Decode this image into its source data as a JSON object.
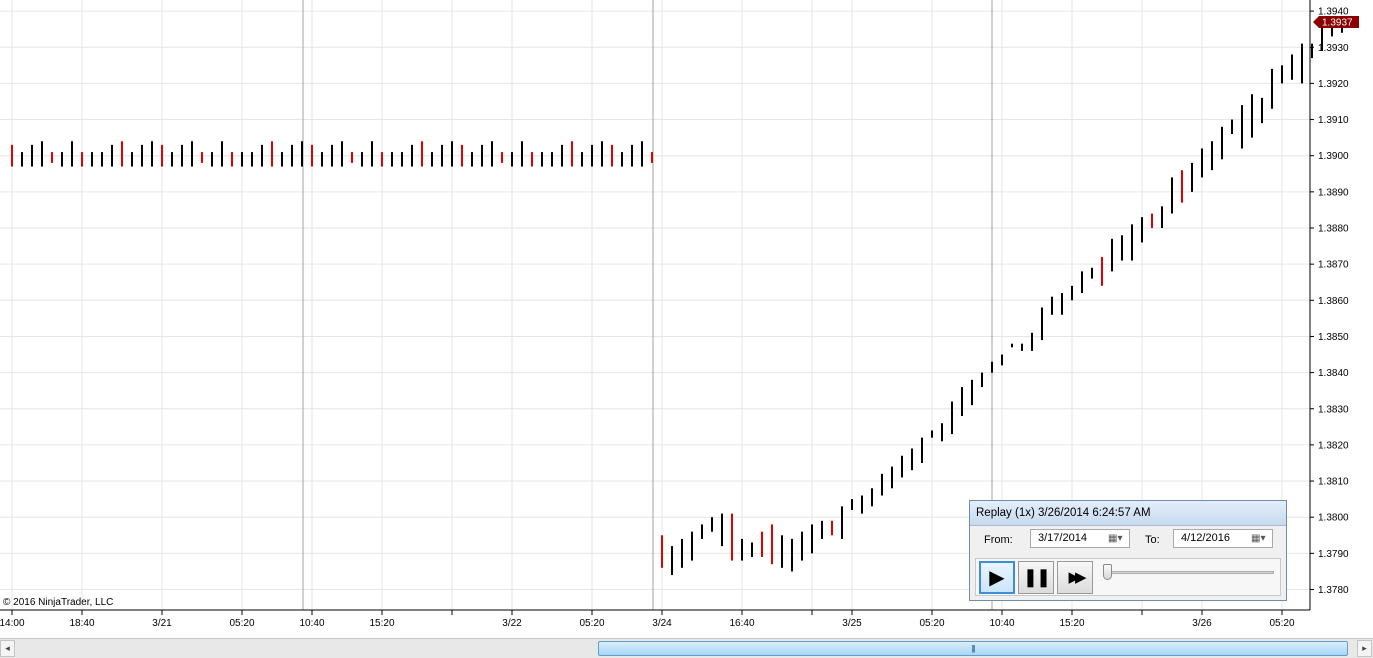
{
  "chart_data": {
    "type": "bar",
    "y_ticks": [
      "1.3780",
      "1.3790",
      "1.3800",
      "1.3810",
      "1.3820",
      "1.3830",
      "1.3840",
      "1.3850",
      "1.3860",
      "1.3870",
      "1.3880",
      "1.3890",
      "1.3900",
      "1.3910",
      "1.3920",
      "1.3930",
      "1.3940"
    ],
    "x_ticks": [
      "14:00",
      "18:40",
      "3/21",
      "05:20",
      "10:40",
      "15:20",
      "3/22",
      "05:20",
      "3/24",
      "16:40",
      "3/25",
      "05:20",
      "10:40",
      "15:20",
      "3/26",
      "05:20"
    ],
    "last_price": "1.3937",
    "ylim": [
      1.3774,
      1.3944
    ],
    "grid": true,
    "session_1": {
      "pattern_high": [
        1.3903,
        1.3901,
        1.3903,
        1.3904,
        1.3901,
        1.3901,
        1.3904,
        1.3901,
        1.3901,
        1.3901,
        1.3903,
        1.3904,
        1.3901,
        1.3903,
        1.3904
      ],
      "pattern_low": [
        1.3897,
        1.3897,
        1.3897,
        1.3897,
        1.3898,
        1.3897,
        1.3897,
        1.3897,
        1.3897,
        1.3897,
        1.3897,
        1.3897,
        1.3897,
        1.3897,
        1.3897
      ],
      "pattern_up": [
        false,
        true,
        true,
        true,
        false,
        true,
        true,
        false,
        true,
        true,
        true,
        false,
        true,
        true,
        true
      ],
      "count": 65
    },
    "session_2": {
      "high": [
        1.3795,
        1.3792,
        1.3794,
        1.3796,
        1.3798,
        1.38,
        1.3801,
        1.3801,
        1.3794,
        1.3793,
        1.3796,
        1.3798,
        1.3795,
        1.3794,
        1.3796,
        1.3798,
        1.3799,
        1.3799,
        1.3803,
        1.3805,
        1.3806,
        1.3808,
        1.3812,
        1.3814,
        1.3817,
        1.3819,
        1.3822,
        1.3824,
        1.3826,
        1.3832,
        1.3836,
        1.3838,
        1.384,
        1.3843,
        1.3845,
        1.3848,
        1.3848,
        1.3851,
        1.3858,
        1.3861,
        1.3862,
        1.3864,
        1.3868,
        1.3869,
        1.3872,
        1.3877,
        1.3878,
        1.3881,
        1.3883,
        1.3884,
        1.3886,
        1.3894,
        1.3896,
        1.3898,
        1.3902,
        1.3904,
        1.3908,
        1.391,
        1.3914,
        1.3917,
        1.3916,
        1.3924,
        1.3925,
        1.3928,
        1.3931,
        1.3931,
        1.3937,
        1.3938,
        1.3938
      ],
      "low": [
        1.3786,
        1.3784,
        1.3786,
        1.3788,
        1.3794,
        1.3796,
        1.3792,
        1.3788,
        1.3788,
        1.3789,
        1.3789,
        1.3787,
        1.3786,
        1.3785,
        1.3788,
        1.379,
        1.3794,
        1.3795,
        1.3794,
        1.3802,
        1.3801,
        1.3803,
        1.3806,
        1.3808,
        1.3811,
        1.3813,
        1.3815,
        1.3822,
        1.3821,
        1.3823,
        1.3828,
        1.3831,
        1.3836,
        1.384,
        1.3842,
        1.3847,
        1.3846,
        1.3846,
        1.3849,
        1.3856,
        1.3856,
        1.386,
        1.3862,
        1.3866,
        1.3864,
        1.3868,
        1.3871,
        1.3871,
        1.3876,
        1.388,
        1.388,
        1.3884,
        1.3887,
        1.389,
        1.3894,
        1.3896,
        1.3899,
        1.3906,
        1.3902,
        1.3905,
        1.3909,
        1.3913,
        1.392,
        1.3921,
        1.392,
        1.3927,
        1.3929,
        1.3933,
        1.3934
      ],
      "up": [
        false,
        true,
        true,
        true,
        true,
        true,
        true,
        false,
        true,
        true,
        false,
        false,
        true,
        true,
        true,
        true,
        true,
        false,
        true,
        true,
        true,
        true,
        true,
        true,
        true,
        true,
        true,
        true,
        true,
        true,
        true,
        true,
        true,
        true,
        true,
        true,
        true,
        true,
        true,
        true,
        true,
        true,
        true,
        true,
        false,
        true,
        true,
        true,
        true,
        false,
        true,
        true,
        false,
        true,
        true,
        true,
        true,
        true,
        true,
        true,
        true,
        true,
        true,
        true,
        true,
        true,
        true,
        true,
        true
      ]
    }
  },
  "copyright": "© 2016 NinjaTrader, LLC",
  "replay": {
    "title": "Replay (1x) 3/26/2014 6:24:57 AM",
    "from_label": "From:",
    "from_value": "3/17/2014",
    "to_label": "To:",
    "to_value": "4/12/2016",
    "calendar_icon": "calendar-icon",
    "play_icon": "▶",
    "pause_icon": "❚❚",
    "fast_forward_icon": "▶▶"
  },
  "scrollbar": {
    "left_arrow": "◂",
    "right_arrow": "▸",
    "grip": "|||"
  },
  "colors": {
    "up_bar": "#000000",
    "down_bar": "#e00000",
    "grid": "#e6e6e6",
    "session_line": "#a0a0a0",
    "price_marker": "#8b0000"
  }
}
